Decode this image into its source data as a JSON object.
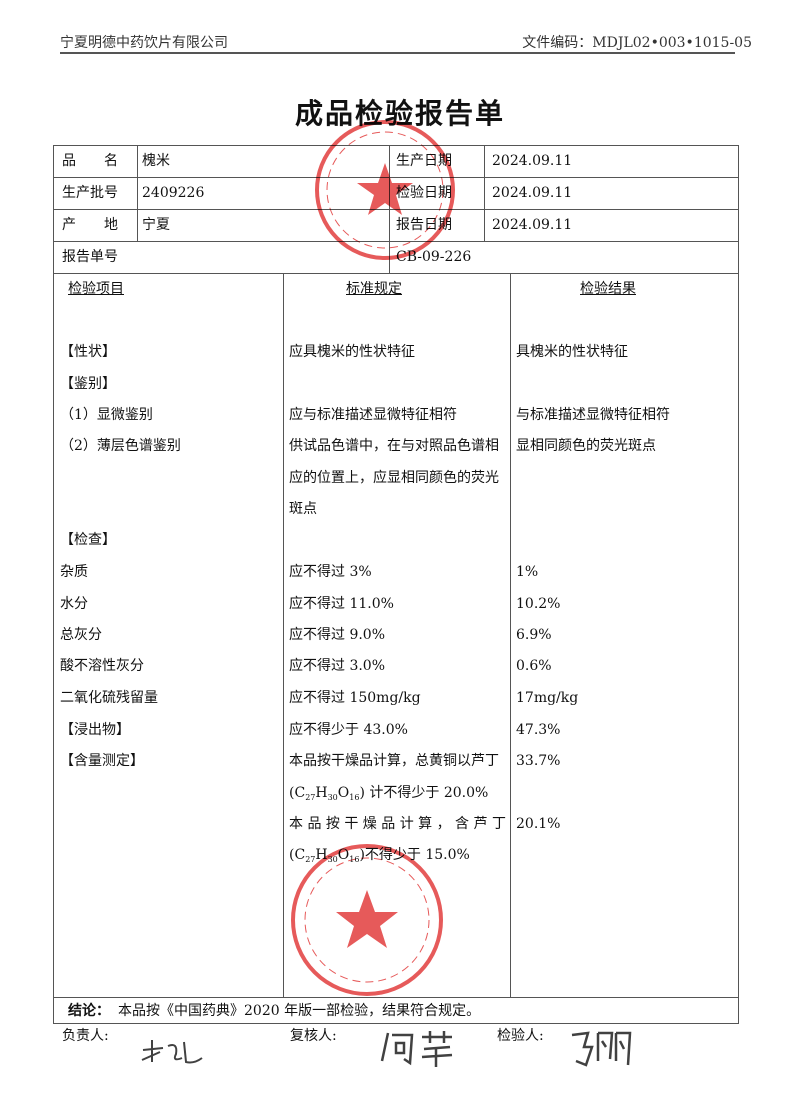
{
  "header": {
    "company": "宁夏明德中药饮片有限公司",
    "doc_code": "文件编码：MDJL02•003•1015-05"
  },
  "title": "成品检验报告单",
  "info": {
    "name_label": "品　　名",
    "name": "槐米",
    "batch_label": "生产批号",
    "batch": "2409226",
    "origin_label": "产　　地",
    "origin": "宁夏",
    "prod_date_label": "生产日期",
    "prod_date": "2024.09.11",
    "test_date_label": "检验日期",
    "test_date": "2024.09.11",
    "report_date_label": "报告日期",
    "report_date": "2024.09.11",
    "report_no_label": "报告单号",
    "report_no": "CB-09-226"
  },
  "columns": [
    "检验项目",
    "标准规定",
    "检验结果"
  ],
  "rows": [
    {
      "item": "【性状】",
      "standard": "应具槐米的性状特征",
      "result": "具槐米的性状特征"
    },
    {
      "item": "【鉴别】",
      "standard": "",
      "result": ""
    },
    {
      "item": "（1）显微鉴别",
      "standard": "应与标准描述显微特征相符",
      "result": "与标准描述显微特征相符"
    },
    {
      "item": "（2）薄层色谱鉴别",
      "standard": "供试品色谱中，在与对照品色谱相",
      "result": "显相同颜色的荧光斑点"
    },
    {
      "item": "",
      "standard": "应的位置上，应显相同颜色的荧光",
      "result": ""
    },
    {
      "item": "",
      "standard": "斑点",
      "result": ""
    },
    {
      "item": "【检查】",
      "standard": "",
      "result": ""
    },
    {
      "item": "杂质",
      "standard": "应不得过 3%",
      "result": "1%"
    },
    {
      "item": "水分",
      "standard": "应不得过 11.0%",
      "result": "10.2%"
    },
    {
      "item": "总灰分",
      "standard": "应不得过 9.0%",
      "result": "6.9%"
    },
    {
      "item": "酸不溶性灰分",
      "standard": "应不得过 3.0%",
      "result": "0.6%"
    },
    {
      "item": "二氧化硫残留量",
      "standard": "应不得过 150mg/kg",
      "result": "17mg/kg"
    },
    {
      "item": "【浸出物】",
      "standard": "应不得少于 43.0%",
      "result": "47.3%"
    },
    {
      "item": "【含量测定】",
      "standard": "本品按干燥品计算，总黄铜以芦丁",
      "result": "33.7%"
    }
  ],
  "formula": {
    "c": "C",
    "c_n": "27",
    "h": "H",
    "h_n": "30",
    "o": "O",
    "o_n": "16"
  },
  "assay": {
    "line2_suffix": "计不得少于 20.0%",
    "line3": "本 品 按 干 燥 品 计 算 ， 含 芦 丁",
    "line3_result": "20.1%",
    "line4_suffix": "不得少于 15.0%"
  },
  "conclusion": {
    "label": "结论：",
    "text": "本品按《中国药典》2020 年版一部检验，结果符合规定。"
  },
  "signatures": {
    "responsible_label": "负责人:",
    "reviewer_label": "复核人:",
    "inspector_label": "检验人:",
    "responsible": "李运",
    "reviewer": "何萍",
    "inspector": "马丽"
  },
  "stamps": {
    "top": "宁夏明德中药饮片有限公司 质量部",
    "bottom": "宁夏明德中药饮片有限公司 质检专用章"
  },
  "colors": {
    "stamp": "#e03030"
  }
}
